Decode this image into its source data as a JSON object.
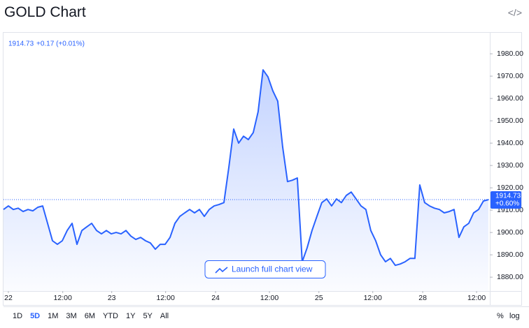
{
  "title": "GOLD Chart",
  "chart_data": {
    "type": "line",
    "legend_price": "1914.73",
    "legend_change": "+0.17 (+0.01%)",
    "last_price": 1914.73,
    "last_change": "+0.60%",
    "series": [
      {
        "name": "GOLD",
        "color": "#2962ff",
        "values": [
          1910.3,
          1911.9,
          1910.3,
          1910.9,
          1909.4,
          1910.3,
          1909.7,
          1911.3,
          1911.9,
          1904.1,
          1896.3,
          1894.7,
          1896.3,
          1900.9,
          1904.1,
          1894.7,
          1900.9,
          1902.5,
          1904.1,
          1900.9,
          1899.4,
          1900.9,
          1899.4,
          1900.0,
          1899.4,
          1900.9,
          1898.4,
          1896.9,
          1897.8,
          1896.3,
          1895.3,
          1892.5,
          1894.7,
          1894.7,
          1897.8,
          1904.1,
          1907.2,
          1908.8,
          1910.3,
          1908.8,
          1910.3,
          1907.2,
          1910.3,
          1911.9,
          1912.5,
          1913.4,
          1929.1,
          1946.3,
          1940.0,
          1943.1,
          1941.6,
          1944.7,
          1954.1,
          1972.8,
          1969.7,
          1963.4,
          1958.8,
          1938.4,
          1922.8,
          1923.4,
          1924.4,
          1886.9,
          1893.1,
          1900.9,
          1907.2,
          1913.4,
          1915.0,
          1911.9,
          1915.0,
          1913.4,
          1916.6,
          1918.1,
          1915.0,
          1911.9,
          1910.3,
          1900.9,
          1896.3,
          1890.0,
          1886.9,
          1888.4,
          1885.3,
          1885.9,
          1886.9,
          1888.4,
          1888.4,
          1921.3,
          1913.4,
          1911.9,
          1910.9,
          1910.3,
          1908.8,
          1909.4,
          1910.3,
          1897.8,
          1902.5,
          1904.1,
          1908.8,
          1910.3,
          1914.1,
          1914.7
        ]
      }
    ],
    "xlim": [
      0,
      99.3
    ],
    "xticks": [
      {
        "value": 1,
        "label": "22"
      },
      {
        "value": 12.1,
        "label": "12:00"
      },
      {
        "value": 22.1,
        "label": "23"
      },
      {
        "value": 33.1,
        "label": "12:00"
      },
      {
        "value": 43.3,
        "label": "24"
      },
      {
        "value": 54.3,
        "label": "12:00"
      },
      {
        "value": 64.4,
        "label": "25"
      },
      {
        "value": 75.4,
        "label": "12:00"
      },
      {
        "value": 85.6,
        "label": "28"
      },
      {
        "value": 96.6,
        "label": "12:00"
      }
    ],
    "ylim": [
      1873.8,
      1989.4
    ],
    "yticks": [
      {
        "value": 1880,
        "label": "1880.00"
      },
      {
        "value": 1890,
        "label": "1890.00"
      },
      {
        "value": 1900,
        "label": "1900.00"
      },
      {
        "value": 1910,
        "label": "1910.00"
      },
      {
        "value": 1920,
        "label": "1920.00"
      },
      {
        "value": 1930,
        "label": "1930.00"
      },
      {
        "value": 1940,
        "label": "1940.00"
      },
      {
        "value": 1950,
        "label": "1950.00"
      },
      {
        "value": 1960,
        "label": "1960.00"
      },
      {
        "value": 1970,
        "label": "1970.00"
      },
      {
        "value": 1980,
        "label": "1980.00"
      }
    ]
  },
  "launch_button": "Launch full chart view",
  "range_buttons": [
    "1D",
    "5D",
    "1M",
    "3M",
    "6M",
    "YTD",
    "1Y",
    "5Y",
    "All"
  ],
  "selected_range": 1,
  "scale_options": [
    "%",
    "log"
  ]
}
